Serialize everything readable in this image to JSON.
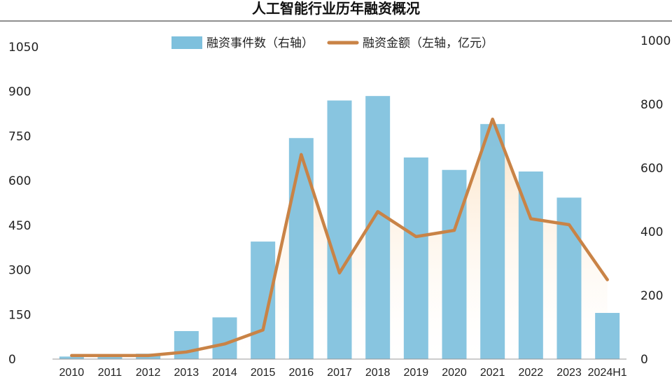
{
  "chart_data": {
    "type": "bar+line",
    "title": "人工智能行业历年融资概况",
    "categories": [
      "2010",
      "2011",
      "2012",
      "2013",
      "2014",
      "2015",
      "2016",
      "2017",
      "2018",
      "2019",
      "2020",
      "2021",
      "2022",
      "2023",
      "2024H1"
    ],
    "series": [
      {
        "name": "融资事件数（右轴）",
        "type": "bar",
        "axis": "right",
        "color": "#7ec0dd",
        "values": [
          8,
          12,
          17,
          88,
          131,
          369,
          694,
          812,
          826,
          633,
          594,
          738,
          589,
          507,
          145
        ]
      },
      {
        "name": "融资金额（左轴，亿元）",
        "type": "line",
        "axis": "left",
        "color": "#c98346",
        "values": [
          12,
          12,
          12,
          24,
          51,
          98,
          688,
          290,
          496,
          412,
          433,
          807,
          472,
          452,
          267
        ]
      }
    ],
    "left_axis": {
      "min": 0,
      "max": 1050,
      "ticks": [
        "0",
        "150",
        "300",
        "450",
        "600",
        "750",
        "900",
        "1050"
      ]
    },
    "right_axis": {
      "min": 0,
      "max": 1000,
      "ticks": [
        "0",
        "200",
        "400",
        "600",
        "800",
        "1000"
      ]
    },
    "legend_position": "top-center",
    "area_fill_color": "#fbe0bf",
    "grid": false
  }
}
